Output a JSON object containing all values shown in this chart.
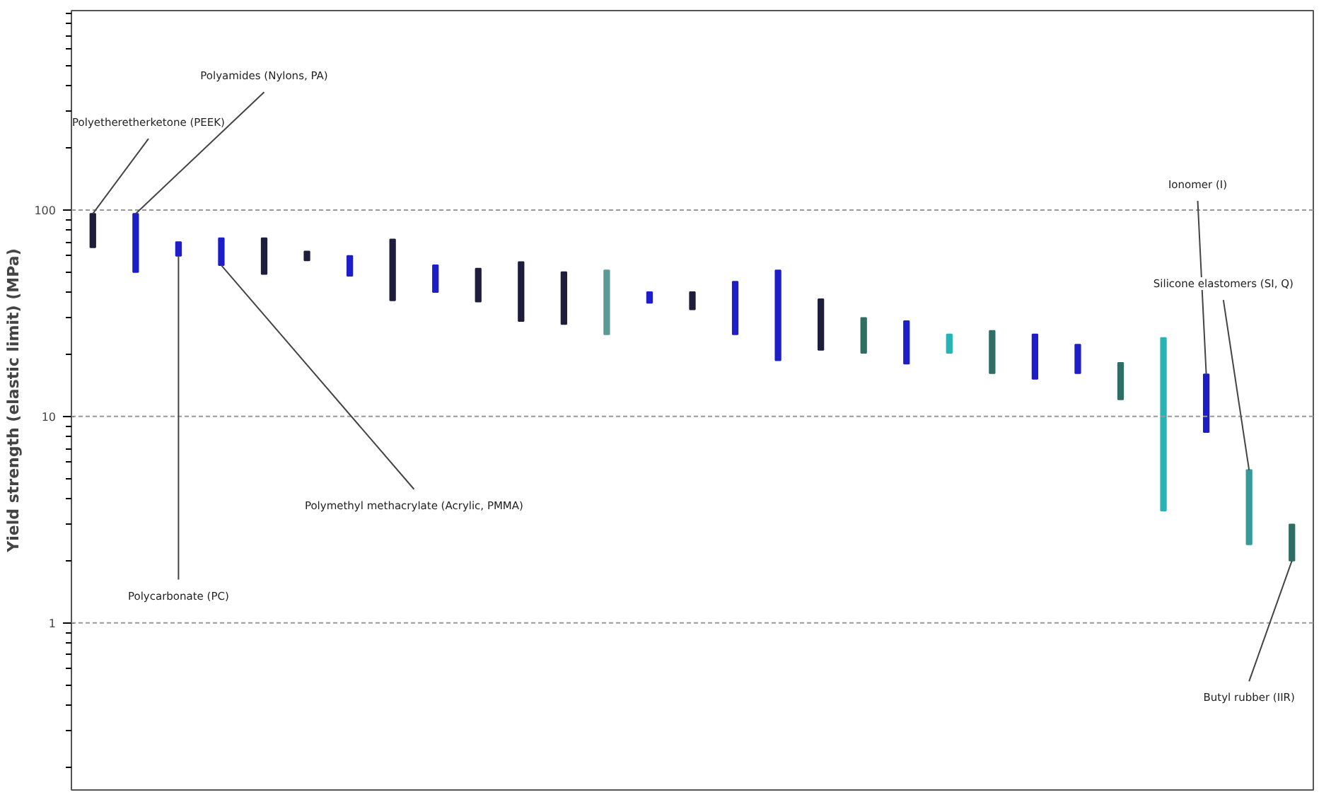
{
  "chart_data": {
    "type": "bar",
    "ylabel": "Yield strength (elastic limit) (MPa)",
    "categories": [
      null,
      null,
      null,
      null,
      null,
      null,
      null,
      null,
      null,
      null,
      null,
      null,
      null,
      null,
      null,
      null,
      null,
      null,
      null,
      null,
      null,
      null,
      null,
      null,
      null,
      null,
      null,
      null,
      null
    ],
    "values": [
      30,
      46,
      10,
      19,
      24,
      6,
      12,
      35.5,
      14,
      16,
      27,
      22,
      26,
      4.5,
      7,
      20,
      32.3,
      16,
      9.7,
      11,
      4.7,
      9.8,
      9.8,
      6.1,
      6.1,
      20.5,
      7.6,
      3.1,
      1
    ],
    "base": [
      66,
      50,
      60,
      54,
      49,
      57,
      48,
      36.5,
      40,
      36,
      29,
      28,
      25,
      35.5,
      33,
      25,
      18.7,
      21,
      20.3,
      18,
      20.3,
      16.2,
      15.2,
      16.2,
      12.1,
      3.5,
      8.4,
      2.4,
      2
    ],
    "colors": [
      "#1e1e3c",
      "#1e1ec8",
      "#1e1ec8",
      "#1e1ec8",
      "#1e1e3c",
      "#1e1e3c",
      "#1e1ec8",
      "#1e1e3c",
      "#1e1ec8",
      "#1e1e3c",
      "#1e1e3c",
      "#1e1e3c",
      "#5a9a96",
      "#1e1ec8",
      "#1e1e3c",
      "#1e1ec8",
      "#1e1ec8",
      "#1e1e3c",
      "#2e6e64",
      "#1e1ec8",
      "#28b4b4",
      "#2e6e64",
      "#1e1ec8",
      "#1e1ec8",
      "#2e6e64",
      "#28b4b4",
      "#1e1ec8",
      "#3a9a9a",
      "#2e6e64"
    ],
    "log": true,
    "ylim": [
      0.155,
      925
    ],
    "yticks": [
      1,
      10,
      100
    ],
    "grid": "y",
    "tick_labels": "y",
    "annotations": [
      "Polyetheretherketone (PEEK)",
      "Polyamides (Nylons, PA)",
      "Polycarbonate (PC)",
      "Polymethyl methacrylate (Acrylic, PMMA)",
      "Ionomer (I)",
      "Silicone elastomers (SI, Q)",
      "Butyl rubber (IIR)"
    ]
  }
}
